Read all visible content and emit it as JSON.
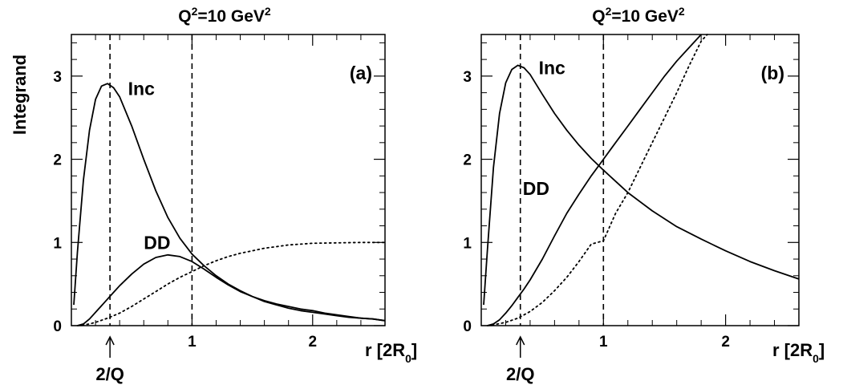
{
  "ylabel": "Integrand",
  "chart_data": [
    {
      "type": "line",
      "panel_label": "(a)",
      "title_main": "Q",
      "title_sup1": "2",
      "title_mid": "=10 GeV",
      "title_sup2": "2",
      "xlabel_main": "r [2R",
      "xlabel_sub": "0",
      "xlabel_end": "]",
      "annotation": "2/Q",
      "annotation_x": 0.32,
      "xlim": [
        0.0,
        2.6
      ],
      "ylim": [
        0,
        3.5
      ],
      "xticks": [
        1,
        2
      ],
      "xtick_labels": [
        "1",
        "2"
      ],
      "yticks": [
        0,
        1,
        2,
        3
      ],
      "ytick_labels": [
        "0",
        "1",
        "2",
        "3"
      ],
      "vlines": [
        0.32,
        1.0
      ],
      "series": [
        {
          "name": "Inc",
          "style": "solid",
          "label_pos": [
            0.47,
            2.85
          ],
          "x": [
            0.02,
            0.05,
            0.1,
            0.15,
            0.2,
            0.25,
            0.3,
            0.35,
            0.4,
            0.5,
            0.6,
            0.7,
            0.8,
            0.9,
            1.0,
            1.1,
            1.2,
            1.3,
            1.4,
            1.5,
            1.6,
            1.7,
            1.8,
            1.9,
            2.0,
            2.1,
            2.2,
            2.3,
            2.4,
            2.5,
            2.6
          ],
          "y": [
            0.25,
            0.88,
            1.75,
            2.35,
            2.72,
            2.88,
            2.91,
            2.86,
            2.75,
            2.4,
            2.0,
            1.62,
            1.3,
            1.05,
            0.86,
            0.72,
            0.6,
            0.5,
            0.42,
            0.35,
            0.29,
            0.25,
            0.21,
            0.18,
            0.16,
            0.14,
            0.12,
            0.1,
            0.09,
            0.08,
            0.06
          ]
        },
        {
          "name": "DD",
          "style": "solid",
          "label_pos": [
            0.6,
            1.0
          ],
          "x": [
            0.05,
            0.1,
            0.15,
            0.2,
            0.25,
            0.3,
            0.35,
            0.4,
            0.5,
            0.6,
            0.7,
            0.8,
            0.9,
            1.0,
            1.1,
            1.2,
            1.3,
            1.4,
            1.5,
            1.6,
            1.7,
            1.8,
            1.9,
            2.0,
            2.1,
            2.2,
            2.3,
            2.4,
            2.5,
            2.6
          ],
          "y": [
            0.0,
            0.02,
            0.08,
            0.16,
            0.24,
            0.32,
            0.4,
            0.48,
            0.62,
            0.74,
            0.82,
            0.85,
            0.83,
            0.77,
            0.68,
            0.58,
            0.49,
            0.41,
            0.35,
            0.3,
            0.26,
            0.23,
            0.2,
            0.18,
            0.15,
            0.13,
            0.11,
            0.09,
            0.08,
            0.06
          ]
        },
        {
          "name": "",
          "style": "dotted",
          "x": [
            0.05,
            0.1,
            0.15,
            0.2,
            0.3,
            0.4,
            0.5,
            0.6,
            0.7,
            0.8,
            0.9,
            1.0,
            1.1,
            1.2,
            1.3,
            1.4,
            1.5,
            1.6,
            1.7,
            1.8,
            1.9,
            2.0,
            2.2,
            2.4,
            2.6
          ],
          "y": [
            0.0,
            0.01,
            0.02,
            0.04,
            0.09,
            0.15,
            0.23,
            0.32,
            0.41,
            0.5,
            0.58,
            0.65,
            0.72,
            0.78,
            0.83,
            0.87,
            0.9,
            0.93,
            0.95,
            0.97,
            0.98,
            0.99,
            0.995,
            1.0,
            1.0
          ]
        }
      ]
    },
    {
      "type": "line",
      "panel_label": "(b)",
      "title_main": "Q",
      "title_sup1": "2",
      "title_mid": "=10 GeV",
      "title_sup2": "2",
      "xlabel_main": "r [2R",
      "xlabel_sub": "0",
      "xlabel_end": "]",
      "annotation": "2/Q",
      "annotation_x": 0.32,
      "xlim": [
        0.0,
        2.6
      ],
      "ylim": [
        0,
        3.5
      ],
      "xticks": [
        1,
        2
      ],
      "xtick_labels": [
        "1",
        "2"
      ],
      "yticks": [
        0,
        1,
        2,
        3
      ],
      "ytick_labels": [
        "0",
        "1",
        "2",
        "3"
      ],
      "vlines": [
        0.32,
        1.0
      ],
      "series": [
        {
          "name": "Inc",
          "style": "solid",
          "label_pos": [
            0.47,
            3.1
          ],
          "x": [
            0.02,
            0.05,
            0.1,
            0.15,
            0.2,
            0.25,
            0.3,
            0.35,
            0.4,
            0.45,
            0.5,
            0.6,
            0.7,
            0.8,
            0.9,
            1.0,
            1.2,
            1.4,
            1.6,
            1.8,
            2.0,
            2.2,
            2.4,
            2.6
          ],
          "y": [
            0.25,
            0.9,
            1.9,
            2.55,
            2.92,
            3.08,
            3.13,
            3.1,
            3.02,
            2.9,
            2.78,
            2.55,
            2.35,
            2.17,
            2.01,
            1.87,
            1.6,
            1.38,
            1.19,
            1.04,
            0.9,
            0.77,
            0.66,
            0.56
          ]
        },
        {
          "name": "DD",
          "style": "solid",
          "label_pos": [
            0.34,
            1.65
          ],
          "x": [
            0.05,
            0.1,
            0.15,
            0.2,
            0.25,
            0.3,
            0.35,
            0.4,
            0.5,
            0.6,
            0.7,
            0.8,
            0.9,
            1.0,
            1.1,
            1.2,
            1.3,
            1.4,
            1.5,
            1.6,
            1.7,
            1.8
          ],
          "y": [
            0.0,
            0.02,
            0.07,
            0.15,
            0.24,
            0.34,
            0.44,
            0.55,
            0.8,
            1.08,
            1.35,
            1.58,
            1.8,
            2.0,
            2.2,
            2.4,
            2.6,
            2.8,
            3.0,
            3.18,
            3.34,
            3.5
          ]
        },
        {
          "name": "",
          "style": "dotted",
          "x": [
            0.05,
            0.1,
            0.2,
            0.3,
            0.4,
            0.5,
            0.6,
            0.7,
            0.8,
            0.9,
            1.0,
            1.1,
            1.2,
            1.3,
            1.4,
            1.5,
            1.6,
            1.7,
            1.8,
            1.85
          ],
          "y": [
            0.0,
            0.01,
            0.04,
            0.09,
            0.17,
            0.28,
            0.42,
            0.58,
            0.77,
            0.98,
            1.02,
            1.35,
            1.6,
            1.9,
            2.2,
            2.5,
            2.8,
            3.12,
            3.42,
            3.5
          ]
        }
      ]
    }
  ]
}
